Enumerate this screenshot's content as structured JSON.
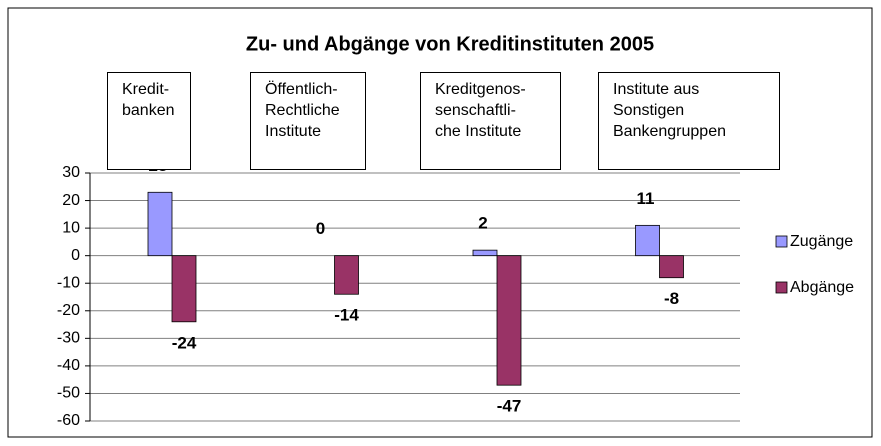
{
  "chart_data": {
    "type": "bar",
    "title": "Zu- und Abgänge von Kreditinstituten 2005",
    "categories": [
      "Kredit-\nbanken",
      "Öffentlich-\nRechtliche\nInstitute",
      "Kreditgenos-\nsenschaftli-\nche Institute",
      "Institute aus\nSonstigen\nBankengruppen"
    ],
    "series": [
      {
        "name": "Zugänge",
        "color": "#9999ff",
        "values": [
          23,
          0,
          2,
          11
        ]
      },
      {
        "name": "Abgänge",
        "color": "#993366",
        "values": [
          -24,
          -14,
          -47,
          -8
        ]
      }
    ],
    "ylim": [
      -60,
      30
    ],
    "yticks": [
      30,
      20,
      10,
      0,
      -10,
      -20,
      -30,
      -40,
      -50,
      -60
    ],
    "grid": true,
    "legend": "right"
  }
}
